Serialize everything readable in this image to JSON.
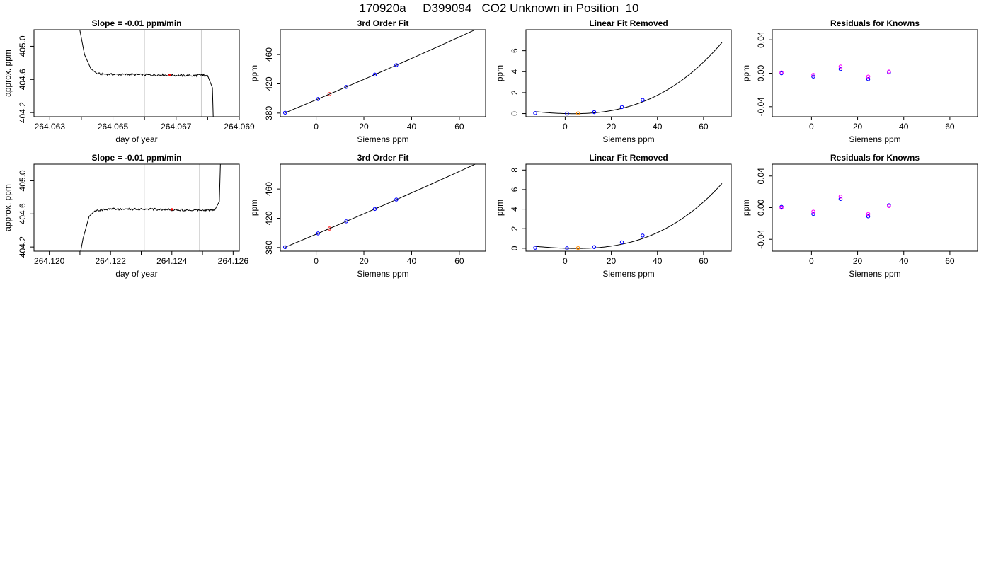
{
  "figure": {
    "title": "170920a     D399094   CO2 Unknown in Position  10"
  },
  "chart_data": [
    {
      "type": "line",
      "row": 0,
      "col": 0,
      "title": "Slope =  -0.01  ppm/min",
      "xlabel": "day of year",
      "ylabel": "approx. ppm",
      "xlim": [
        264.0625,
        264.069
      ],
      "ylim": [
        404.15,
        405.2
      ],
      "x_ticks": [
        264.063,
        264.064,
        264.065,
        264.066,
        264.067,
        264.068,
        264.069
      ],
      "x_tick_labels": [
        "264.063",
        "",
        "264.065",
        "",
        "264.067",
        "",
        "264.069"
      ],
      "y_ticks": [
        404.2,
        404.6,
        405.0
      ],
      "y_tick_labels": [
        "404.2",
        "404.6",
        "405.0"
      ],
      "vlines": [
        264.066,
        264.0678
      ],
      "vline_color": "#cccccc",
      "line_color": "#000000",
      "trace": [
        [
          264.0638,
          405.5
        ],
        [
          264.0641,
          404.9
        ],
        [
          264.0643,
          404.73
        ],
        [
          264.0645,
          404.67
        ],
        [
          264.065,
          404.66
        ],
        [
          264.0655,
          404.66
        ],
        [
          264.066,
          404.655
        ],
        [
          264.0665,
          404.655
        ],
        [
          264.067,
          404.65
        ],
        [
          264.0675,
          404.645
        ],
        [
          264.0678,
          404.655
        ],
        [
          264.068,
          404.645
        ],
        [
          264.06815,
          404.5
        ],
        [
          264.0682,
          403.8
        ]
      ],
      "trace_noise": 0.012,
      "marker": {
        "x": 264.0668,
        "y": 404.655,
        "color": "#ff0000"
      }
    },
    {
      "type": "line",
      "row": 0,
      "col": 1,
      "title": "3rd Order Fit",
      "xlabel": "Siemens ppm",
      "ylabel": "ppm",
      "xlim": [
        -15,
        71
      ],
      "ylim": [
        375,
        494
      ],
      "x_ticks": [
        0,
        20,
        40,
        60
      ],
      "x_tick_labels": [
        "0",
        "20",
        "40",
        "60"
      ],
      "y_ticks": [
        380,
        420,
        460
      ],
      "y_tick_labels": [
        "380",
        "420",
        "460"
      ],
      "curve": {
        "kind": "poly",
        "coef": [
          398.2,
          1.38,
          0.0008,
          1e-06
        ],
        "from": -13,
        "to": 68,
        "color": "#000000"
      },
      "points": [
        {
          "x": -13,
          "y": 380.5,
          "color": "#0000ff"
        },
        {
          "x": 0.8,
          "y": 399.3,
          "color": "#0000ff"
        },
        {
          "x": 5.6,
          "y": 405.9,
          "color": "#ff0000"
        },
        {
          "x": 12.6,
          "y": 415.8,
          "color": "#0000ff"
        },
        {
          "x": 24.6,
          "y": 432.7,
          "color": "#0000ff"
        },
        {
          "x": 33.6,
          "y": 445.6,
          "color": "#0000ff"
        }
      ]
    },
    {
      "type": "line",
      "row": 0,
      "col": 2,
      "title": "Linear Fit Removed",
      "xlabel": "Siemens ppm",
      "ylabel": "ppm",
      "xlim": [
        -17,
        72
      ],
      "ylim": [
        -0.3,
        8.0
      ],
      "x_ticks": [
        0,
        20,
        40,
        60
      ],
      "x_tick_labels": [
        "0",
        "20",
        "40",
        "60"
      ],
      "y_ticks": [
        0,
        2,
        4,
        6
      ],
      "y_tick_labels": [
        "0",
        "2",
        "4",
        "6"
      ],
      "curve": {
        "kind": "poly",
        "coef": [
          0.0,
          -0.006,
          0.0008,
          1.11e-05
        ],
        "from": -13,
        "to": 68,
        "color": "#000000"
      },
      "points": [
        {
          "x": -13,
          "y": 0.05,
          "color": "#0000ff"
        },
        {
          "x": 0.8,
          "y": 0.0,
          "color": "#0000ff"
        },
        {
          "x": 5.6,
          "y": 0.03,
          "color": "#ff8c00"
        },
        {
          "x": 12.6,
          "y": 0.14,
          "color": "#0000ff"
        },
        {
          "x": 24.6,
          "y": 0.62,
          "color": "#0000ff"
        },
        {
          "x": 33.6,
          "y": 1.3,
          "color": "#0000ff"
        }
      ]
    },
    {
      "type": "scatter",
      "row": 0,
      "col": 3,
      "title": "Residuals for Knowns",
      "xlabel": "Siemens ppm",
      "ylabel": "ppm",
      "xlim": [
        -17,
        72
      ],
      "ylim": [
        -0.052,
        0.052
      ],
      "x_ticks": [
        0,
        20,
        40,
        60
      ],
      "x_tick_labels": [
        "0",
        "20",
        "40",
        "60"
      ],
      "y_ticks": [
        -0.04,
        0.0,
        0.04
      ],
      "y_tick_labels": [
        "-0.04",
        "0.00",
        "0.04"
      ],
      "points": [
        {
          "x": -13,
          "y": 0.0,
          "color": "#0000ff"
        },
        {
          "x": -13,
          "y": 0.001,
          "color": "#ff00ff"
        },
        {
          "x": 0.8,
          "y": -0.004,
          "color": "#0000ff"
        },
        {
          "x": 0.8,
          "y": -0.002,
          "color": "#ff00ff"
        },
        {
          "x": 12.6,
          "y": 0.005,
          "color": "#0000ff"
        },
        {
          "x": 12.6,
          "y": 0.008,
          "color": "#ff00ff"
        },
        {
          "x": 24.6,
          "y": -0.007,
          "color": "#0000ff"
        },
        {
          "x": 24.6,
          "y": -0.004,
          "color": "#ff00ff"
        },
        {
          "x": 33.6,
          "y": 0.001,
          "color": "#0000ff"
        },
        {
          "x": 33.6,
          "y": 0.002,
          "color": "#ff00ff"
        }
      ]
    },
    {
      "type": "line",
      "row": 1,
      "col": 0,
      "title": "Slope =  -0.01  ppm/min",
      "xlabel": "day of year",
      "ylabel": "approx. ppm",
      "xlim": [
        264.1195,
        264.1262
      ],
      "ylim": [
        404.15,
        405.2
      ],
      "x_ticks": [
        264.12,
        264.121,
        264.122,
        264.123,
        264.124,
        264.125,
        264.126
      ],
      "x_tick_labels": [
        "264.120",
        "",
        "264.122",
        "",
        "264.124",
        "",
        "264.126"
      ],
      "y_ticks": [
        404.2,
        404.6,
        405.0
      ],
      "y_tick_labels": [
        "404.2",
        "404.6",
        "405.0"
      ],
      "vlines": [
        264.1231,
        264.1249
      ],
      "vline_color": "#cccccc",
      "line_color": "#000000",
      "trace": [
        [
          264.1209,
          403.9
        ],
        [
          264.1211,
          404.3
        ],
        [
          264.1213,
          404.57
        ],
        [
          264.1215,
          404.64
        ],
        [
          264.122,
          404.66
        ],
        [
          264.1225,
          404.655
        ],
        [
          264.123,
          404.66
        ],
        [
          264.1235,
          404.655
        ],
        [
          264.124,
          404.65
        ],
        [
          264.1245,
          404.645
        ],
        [
          264.125,
          404.65
        ],
        [
          264.1254,
          404.645
        ],
        [
          264.12555,
          404.75
        ],
        [
          264.1256,
          405.4
        ]
      ],
      "trace_noise": 0.012,
      "marker": {
        "x": 264.124,
        "y": 404.655,
        "color": "#ff0000"
      }
    },
    {
      "type": "line",
      "row": 1,
      "col": 1,
      "title": "3rd Order Fit",
      "xlabel": "Siemens ppm",
      "ylabel": "ppm",
      "xlim": [
        -15,
        71
      ],
      "ylim": [
        375,
        494
      ],
      "x_ticks": [
        0,
        20,
        40,
        60
      ],
      "x_tick_labels": [
        "0",
        "20",
        "40",
        "60"
      ],
      "y_ticks": [
        380,
        420,
        460
      ],
      "y_tick_labels": [
        "380",
        "420",
        "460"
      ],
      "curve": {
        "kind": "poly",
        "coef": [
          398.2,
          1.38,
          0.0008,
          1e-06
        ],
        "from": -13,
        "to": 68,
        "color": "#000000"
      },
      "points": [
        {
          "x": -13,
          "y": 380.5,
          "color": "#0000ff"
        },
        {
          "x": 0.8,
          "y": 399.3,
          "color": "#0000ff"
        },
        {
          "x": 5.6,
          "y": 405.9,
          "color": "#ff0000"
        },
        {
          "x": 12.6,
          "y": 415.8,
          "color": "#0000ff"
        },
        {
          "x": 24.6,
          "y": 432.7,
          "color": "#0000ff"
        },
        {
          "x": 33.6,
          "y": 445.6,
          "color": "#0000ff"
        }
      ]
    },
    {
      "type": "line",
      "row": 1,
      "col": 2,
      "title": "Linear Fit Removed",
      "xlabel": "Siemens ppm",
      "ylabel": "ppm",
      "xlim": [
        -17,
        72
      ],
      "ylim": [
        -0.3,
        8.6
      ],
      "x_ticks": [
        0,
        20,
        40,
        60
      ],
      "x_tick_labels": [
        "0",
        "20",
        "40",
        "60"
      ],
      "y_ticks": [
        0,
        2,
        4,
        6,
        8
      ],
      "y_tick_labels": [
        "0",
        "2",
        "4",
        "6",
        "8"
      ],
      "curve": {
        "kind": "poly",
        "coef": [
          0.0,
          -0.008,
          0.0007,
          1.25e-05
        ],
        "from": -13,
        "to": 68,
        "color": "#000000"
      },
      "points": [
        {
          "x": -13,
          "y": 0.05,
          "color": "#0000ff"
        },
        {
          "x": 0.8,
          "y": 0.0,
          "color": "#0000ff"
        },
        {
          "x": 5.6,
          "y": 0.02,
          "color": "#ff8c00"
        },
        {
          "x": 12.6,
          "y": 0.12,
          "color": "#0000ff"
        },
        {
          "x": 24.6,
          "y": 0.6,
          "color": "#0000ff"
        },
        {
          "x": 33.6,
          "y": 1.3,
          "color": "#0000ff"
        }
      ]
    },
    {
      "type": "scatter",
      "row": 1,
      "col": 3,
      "title": "Residuals for Knowns",
      "xlabel": "Siemens ppm",
      "ylabel": "ppm",
      "xlim": [
        -17,
        72
      ],
      "ylim": [
        -0.055,
        0.055
      ],
      "x_ticks": [
        0,
        20,
        40,
        60
      ],
      "x_tick_labels": [
        "0",
        "20",
        "40",
        "60"
      ],
      "y_ticks": [
        -0.04,
        0.0,
        0.04
      ],
      "y_tick_labels": [
        "-0.04",
        "0.00",
        "0.04"
      ],
      "points": [
        {
          "x": -13,
          "y": 0.001,
          "color": "#0000ff"
        },
        {
          "x": -13,
          "y": 0.0,
          "color": "#ff00ff"
        },
        {
          "x": 0.8,
          "y": -0.008,
          "color": "#0000ff"
        },
        {
          "x": 0.8,
          "y": -0.005,
          "color": "#ff00ff"
        },
        {
          "x": 12.6,
          "y": 0.011,
          "color": "#0000ff"
        },
        {
          "x": 12.6,
          "y": 0.014,
          "color": "#ff00ff"
        },
        {
          "x": 24.6,
          "y": -0.011,
          "color": "#0000ff"
        },
        {
          "x": 24.6,
          "y": -0.008,
          "color": "#ff00ff"
        },
        {
          "x": 33.6,
          "y": 0.003,
          "color": "#0000ff"
        },
        {
          "x": 33.6,
          "y": 0.002,
          "color": "#ff00ff"
        }
      ]
    }
  ]
}
